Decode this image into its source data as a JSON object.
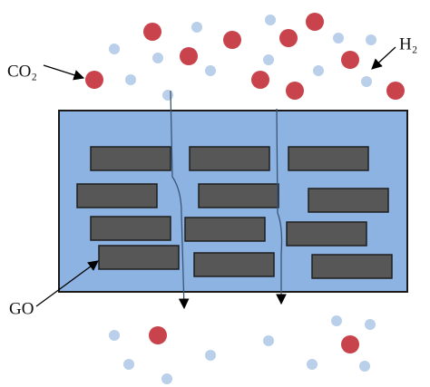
{
  "labels": {
    "co2": "CO₂",
    "h2": "H₂",
    "go": "GO"
  }
}
